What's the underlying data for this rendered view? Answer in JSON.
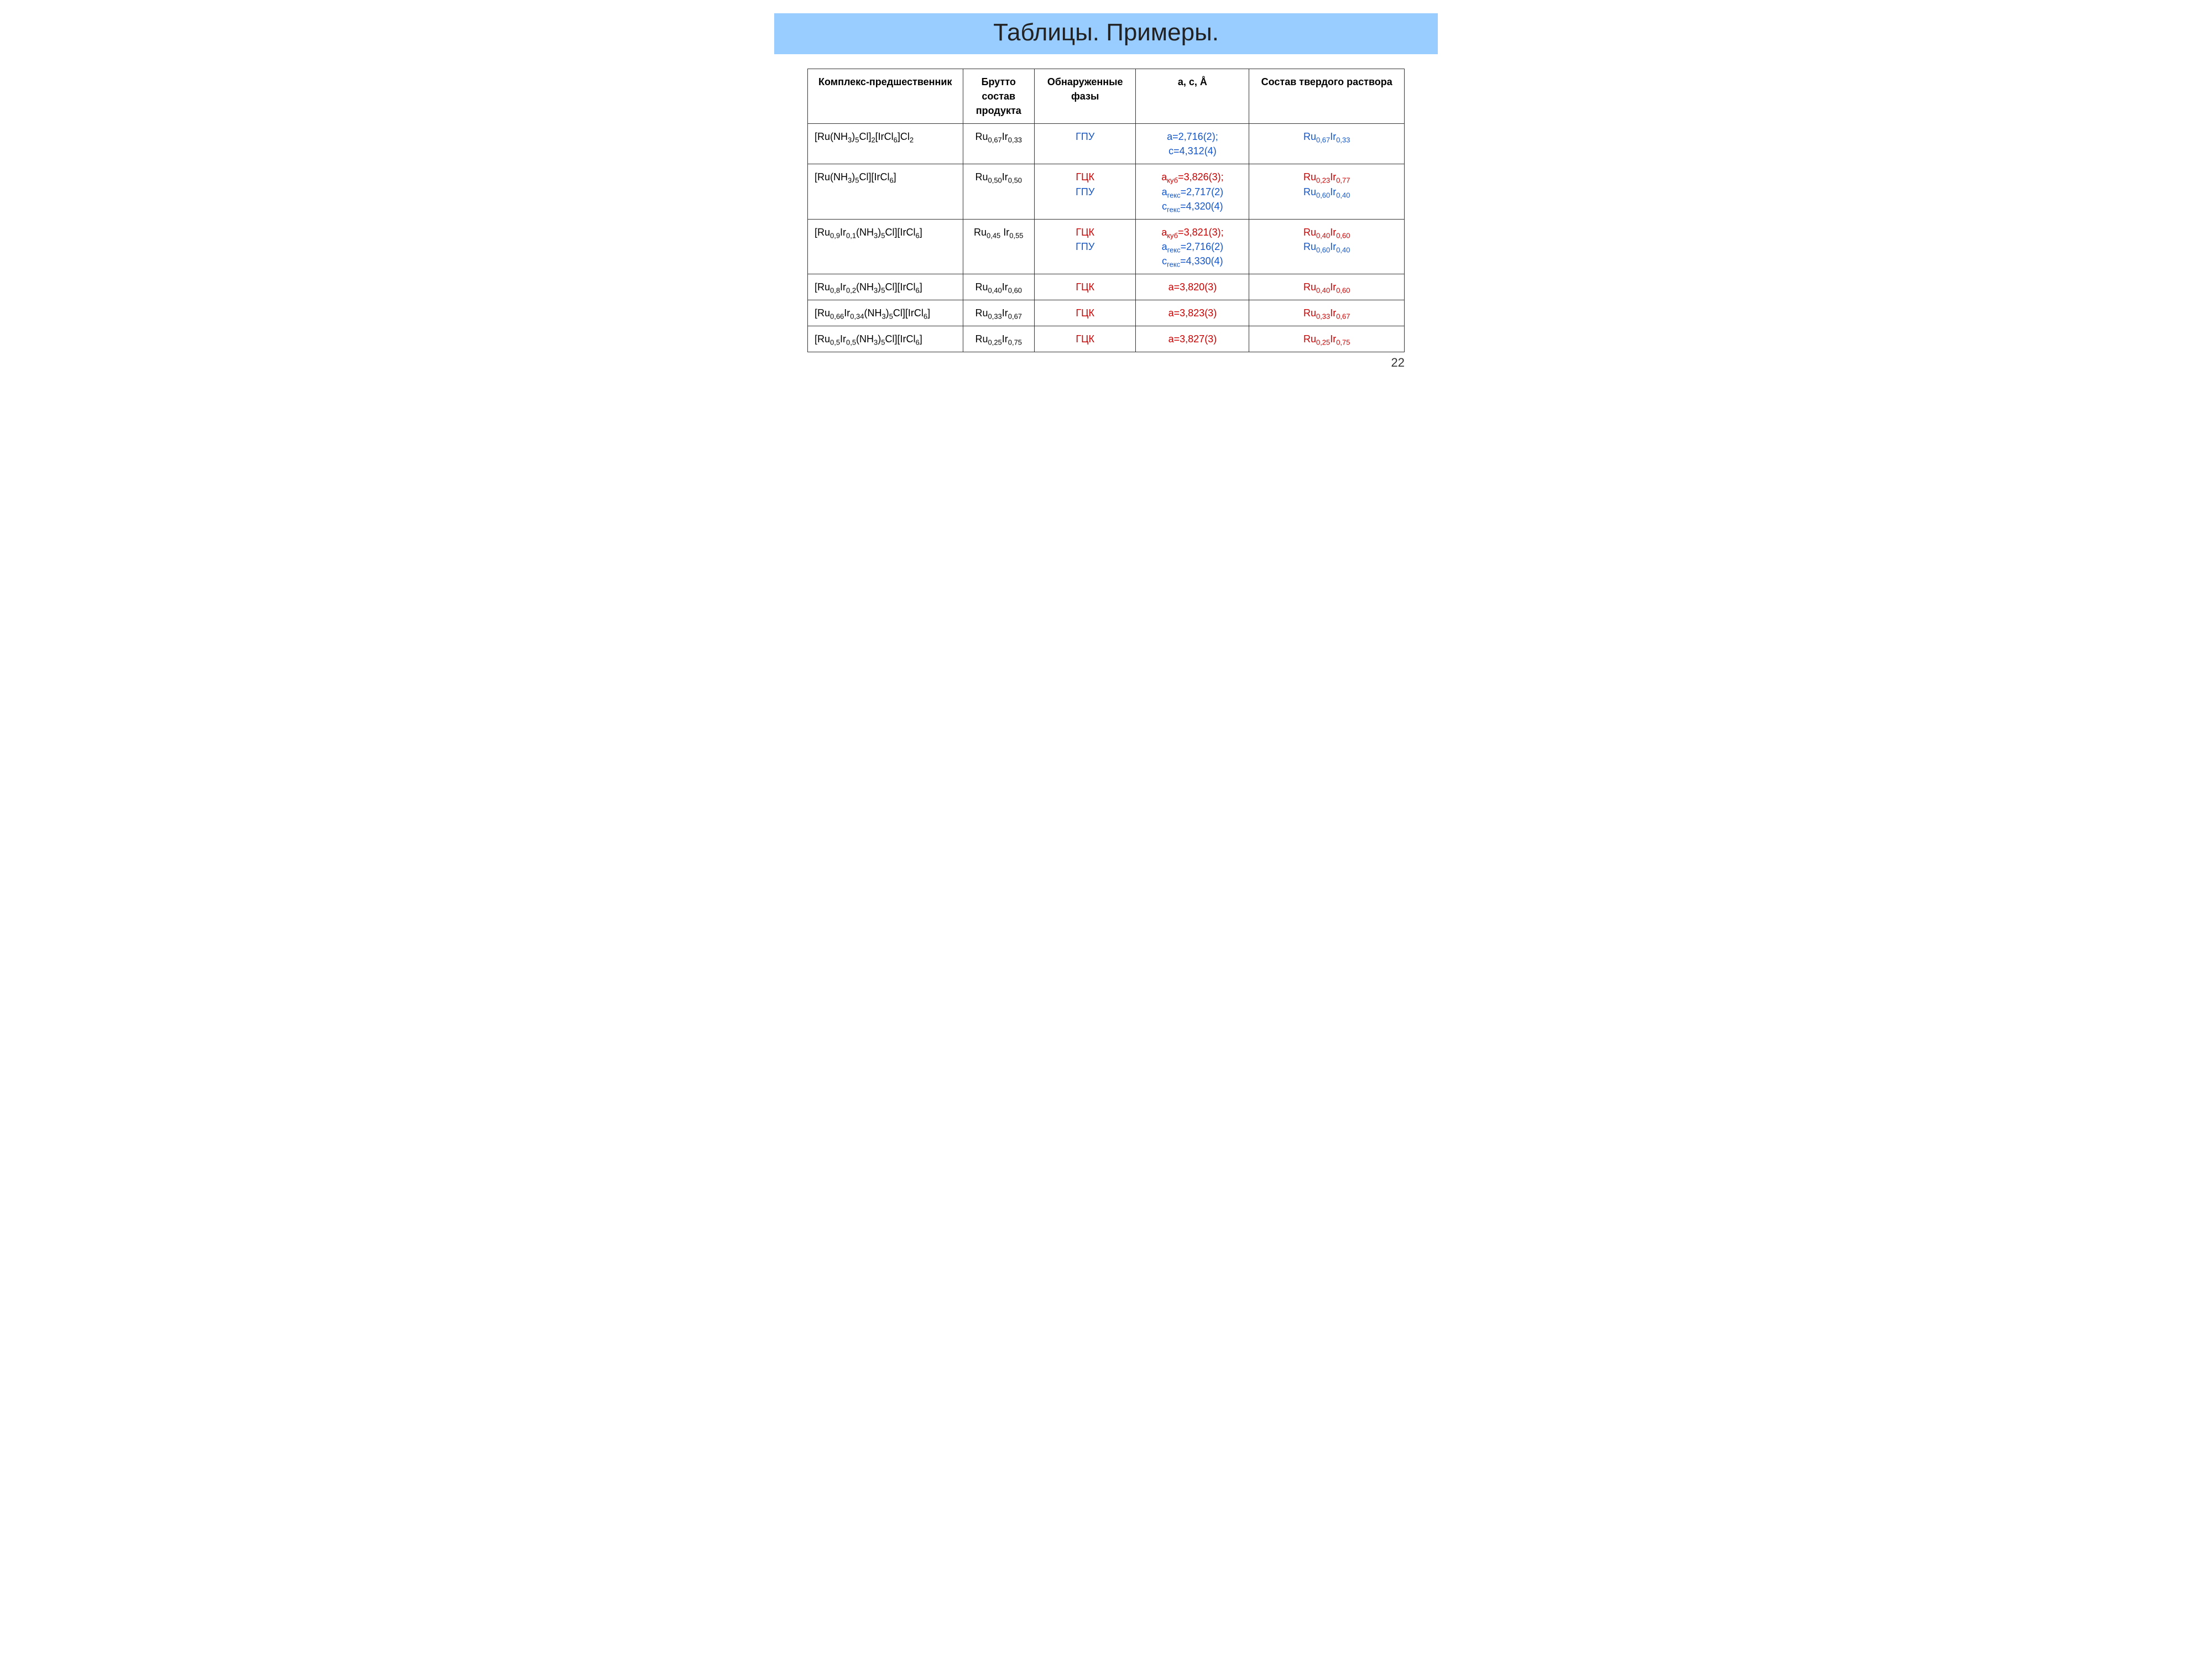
{
  "title": "Таблицы. Примеры.",
  "page_number": "22",
  "colors": {
    "title_band": "#99ccff",
    "red": "#cc0000",
    "blue": "#1155cc",
    "border": "#333333",
    "background": "#ffffff"
  },
  "table": {
    "columns": [
      {
        "key": "precursor",
        "label": "Комплекс-предшественник",
        "align": "left",
        "width_pct": 26
      },
      {
        "key": "brutto",
        "label": "Брутто состав продукта",
        "align": "center",
        "width_pct": 12
      },
      {
        "key": "phases",
        "label": "Обнаруженные фазы",
        "align": "center",
        "width_pct": 17
      },
      {
        "key": "lattice",
        "label": "a, c, Å",
        "align": "center",
        "width_pct": 19
      },
      {
        "key": "solid",
        "label": "Состав твердого раствора",
        "align": "center",
        "width_pct": 26
      }
    ],
    "rows": [
      {
        "precursor_html": "[Ru(NH<sub>3</sub>)<sub>5</sub>Cl]<sub>2</sub>[IrCl<sub>6</sub>]Cl<sub>2</sub>",
        "brutto_html": "Ru<sub>0,67</sub>Ir<sub>0,33</sub>",
        "phases": [
          {
            "text": "ГПУ",
            "color": "blue"
          }
        ],
        "lattice": [
          {
            "text": "a=2,716(2);",
            "color": "blue"
          },
          {
            "text": "c=4,312(4)",
            "color": "blue"
          }
        ],
        "solid": [
          {
            "html": "Ru<sub>0,67</sub>Ir<sub>0,33</sub>",
            "color": "blue"
          }
        ]
      },
      {
        "precursor_html": "[Ru(NH<sub>3</sub>)<sub>5</sub>Cl][IrCl<sub>6</sub>]",
        "brutto_html": "Ru<sub>0,50</sub>Ir<sub>0,50</sub>",
        "phases": [
          {
            "text": "ГЦК",
            "color": "red"
          },
          {
            "text": "ГПУ",
            "color": "blue"
          }
        ],
        "lattice": [
          {
            "html": "a<sub>куб</sub>=3,826(3);",
            "color": "red"
          },
          {
            "html": "a<sub>гекс</sub>=2,717(2)",
            "color": "blue"
          },
          {
            "html": "c<sub>гекс</sub>=4,320(4)",
            "color": "blue"
          }
        ],
        "solid": [
          {
            "html": "Ru<sub>0,23</sub>Ir<sub>0,77</sub>",
            "color": "red"
          },
          {
            "html": "Ru<sub>0,60</sub>Ir<sub>0,40</sub>",
            "color": "blue"
          }
        ]
      },
      {
        "precursor_html": "[Ru<sub>0,9</sub>Ir<sub>0,1</sub>(NH<sub>3</sub>)<sub>5</sub>Cl][IrCl<sub>6</sub>]",
        "brutto_html": "Ru<sub>0,45</sub> Ir<sub>0,55</sub>",
        "phases": [
          {
            "text": "ГЦК",
            "color": "red"
          },
          {
            "text": "ГПУ",
            "color": "blue"
          }
        ],
        "lattice": [
          {
            "html": "a<sub>куб</sub>=3,821(3);",
            "color": "red"
          },
          {
            "html": "a<sub>гекс</sub>=2,716(2)",
            "color": "blue"
          },
          {
            "html": "c<sub>гекс</sub>=4,330(4)",
            "color": "blue"
          }
        ],
        "solid": [
          {
            "html": "Ru<sub>0,40</sub>Ir<sub>0,60</sub>",
            "color": "red"
          },
          {
            "html": "Ru<sub>0,60</sub>Ir<sub>0,40</sub>",
            "color": "blue"
          }
        ]
      },
      {
        "precursor_html": "[Ru<sub>0,8</sub>Ir<sub>0,2</sub>(NH<sub>3</sub>)<sub>5</sub>Cl][IrCl<sub>6</sub>]",
        "brutto_html": "Ru<sub>0,40</sub>Ir<sub>0,60</sub>",
        "phases": [
          {
            "text": "ГЦК",
            "color": "red"
          }
        ],
        "lattice": [
          {
            "text": "a=3,820(3)",
            "color": "red"
          }
        ],
        "solid": [
          {
            "html": "Ru<sub>0,40</sub>Ir<sub>0,60</sub>",
            "color": "red"
          }
        ]
      },
      {
        "precursor_html": "[Ru<sub>0,66</sub>Ir<sub>0,34</sub>(NH<sub>3</sub>)<sub>5</sub>Cl][IrCl<sub>6</sub>]",
        "brutto_html": "Ru<sub>0,33</sub>Ir<sub>0,67</sub>",
        "phases": [
          {
            "text": "ГЦК",
            "color": "red"
          }
        ],
        "lattice": [
          {
            "text": "a=3,823(3)",
            "color": "red"
          }
        ],
        "solid": [
          {
            "html": "Ru<sub>0,33</sub>Ir<sub>0,67</sub>",
            "color": "red"
          }
        ]
      },
      {
        "precursor_html": "[Ru<sub>0,5</sub>Ir<sub>0,5</sub>(NH<sub>3</sub>)<sub>5</sub>Cl][IrCl<sub>6</sub>]",
        "brutto_html": "Ru<sub>0,25</sub>Ir<sub>0,75</sub>",
        "phases": [
          {
            "text": "ГЦК",
            "color": "red"
          }
        ],
        "lattice": [
          {
            "text": "a=3,827(3)",
            "color": "red"
          }
        ],
        "solid": [
          {
            "html": "Ru<sub>0,25</sub>Ir<sub>0,75</sub>",
            "color": "red"
          }
        ]
      }
    ]
  }
}
